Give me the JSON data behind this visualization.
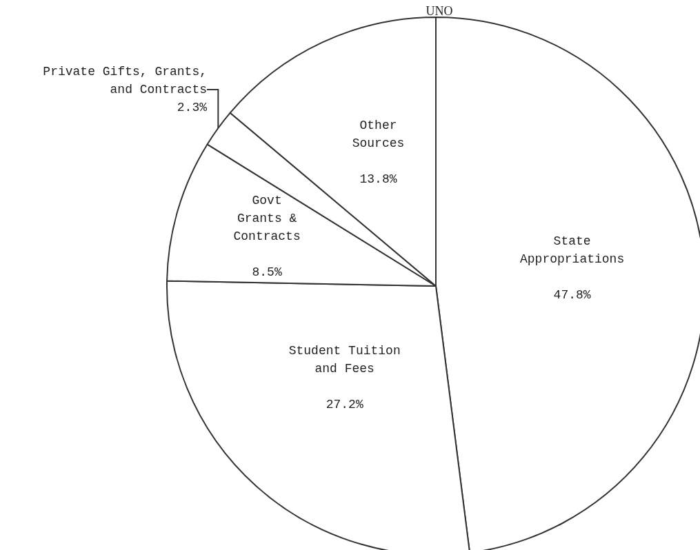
{
  "chart_data": {
    "type": "pie",
    "title": "UNO",
    "categories": [
      "State\nAppropriations",
      "Student Tuition\nand Fees",
      "Govt\nGrants &\nContracts",
      "Private Gifts, Grants,\nand Contracts",
      "Other\nSources"
    ],
    "values": [
      47.8,
      27.2,
      8.5,
      2.3,
      13.8
    ],
    "value_labels": [
      "47.8%",
      "27.2%",
      "8.5%",
      "2.3%",
      "13.8%"
    ],
    "colors": [
      "#ffffff",
      "#ffffff",
      "#ffffff",
      "#ffffff",
      "#ffffff"
    ],
    "legend": false
  }
}
